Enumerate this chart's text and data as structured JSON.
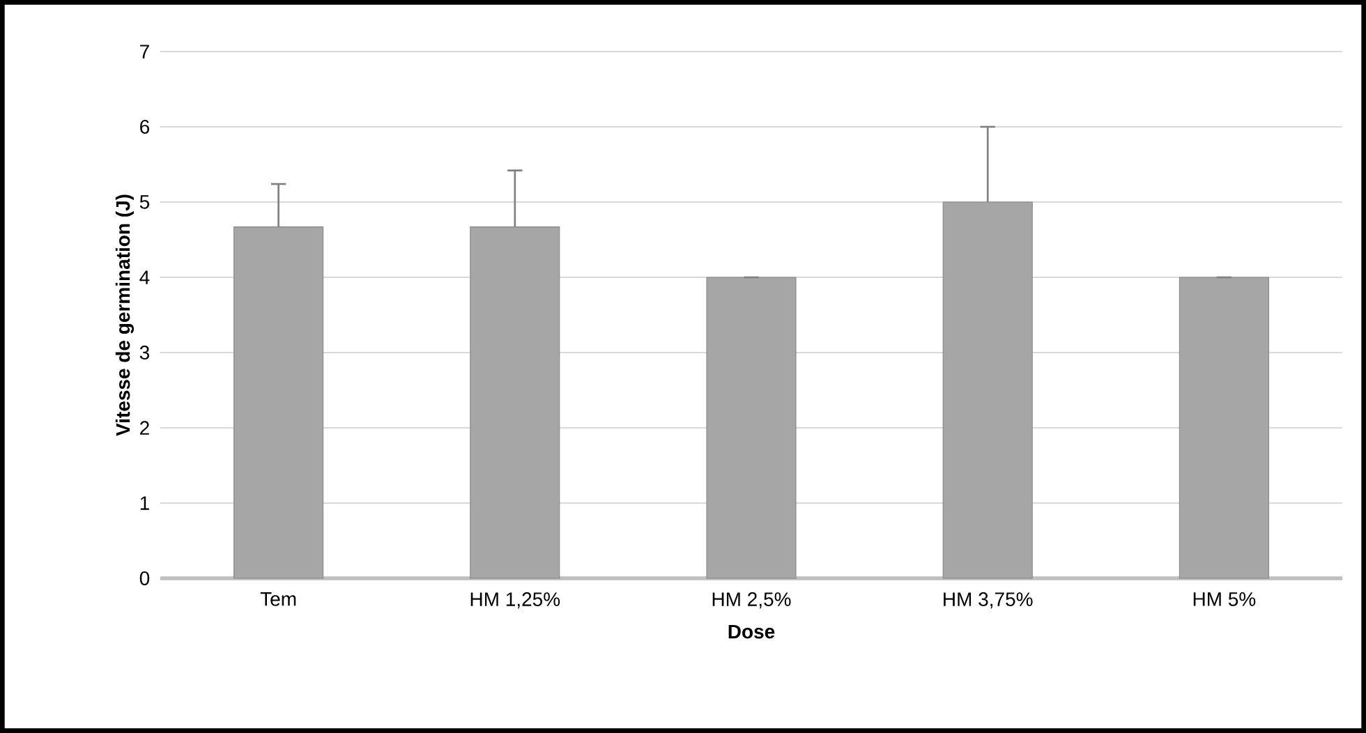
{
  "chart_data": {
    "type": "bar",
    "xlabel": "Dose",
    "ylabel": "Vitesse de germination (J)",
    "categories": [
      "Tem",
      "HM 1,25%",
      "HM 2,5%",
      "HM 3,75%",
      "HM 5%"
    ],
    "values": [
      4.67,
      4.67,
      4,
      5,
      4
    ],
    "errors": [
      0.57,
      0.75,
      0,
      1,
      0
    ],
    "color": "#a6a6a6",
    "ylim": [
      0,
      7
    ],
    "yticks": [
      0,
      1,
      2,
      3,
      4,
      5,
      6,
      7
    ],
    "grid": "y"
  }
}
